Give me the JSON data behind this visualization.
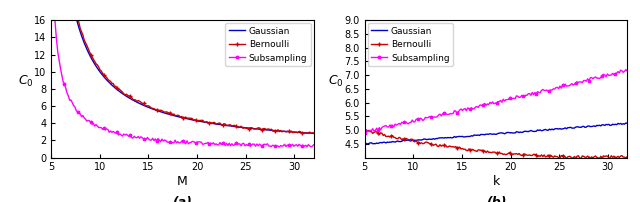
{
  "panel_a": {
    "xlabel": "M",
    "ylabel": "C_0",
    "caption": "(a)",
    "ylim": [
      0,
      16
    ],
    "xlim": [
      5,
      32
    ],
    "yticks": [
      0,
      2,
      4,
      6,
      8,
      10,
      12,
      14,
      16
    ],
    "xticks": [
      5,
      10,
      15,
      20,
      25,
      30
    ],
    "gaussian_color": "#0000cc",
    "bernoulli_color": "#cc0000",
    "subsampling_color": "#ff00ff"
  },
  "panel_b": {
    "xlabel": "k",
    "ylabel": "C_0",
    "caption": "(b)",
    "ylim": [
      4,
      9
    ],
    "xlim": [
      5,
      32
    ],
    "yticks": [
      4.5,
      5.0,
      5.5,
      6.0,
      6.5,
      7.0,
      7.5,
      8.0,
      8.5,
      9.0
    ],
    "xticks": [
      5,
      10,
      15,
      20,
      25,
      30
    ],
    "gaussian_color": "#0000cc",
    "bernoulli_color": "#cc0000",
    "subsampling_color": "#ff00ff"
  },
  "legend_labels": [
    "Gaussian",
    "Bernoulli",
    "Subsampling"
  ],
  "fig_width": 6.4,
  "fig_height": 2.02,
  "dpi": 100
}
